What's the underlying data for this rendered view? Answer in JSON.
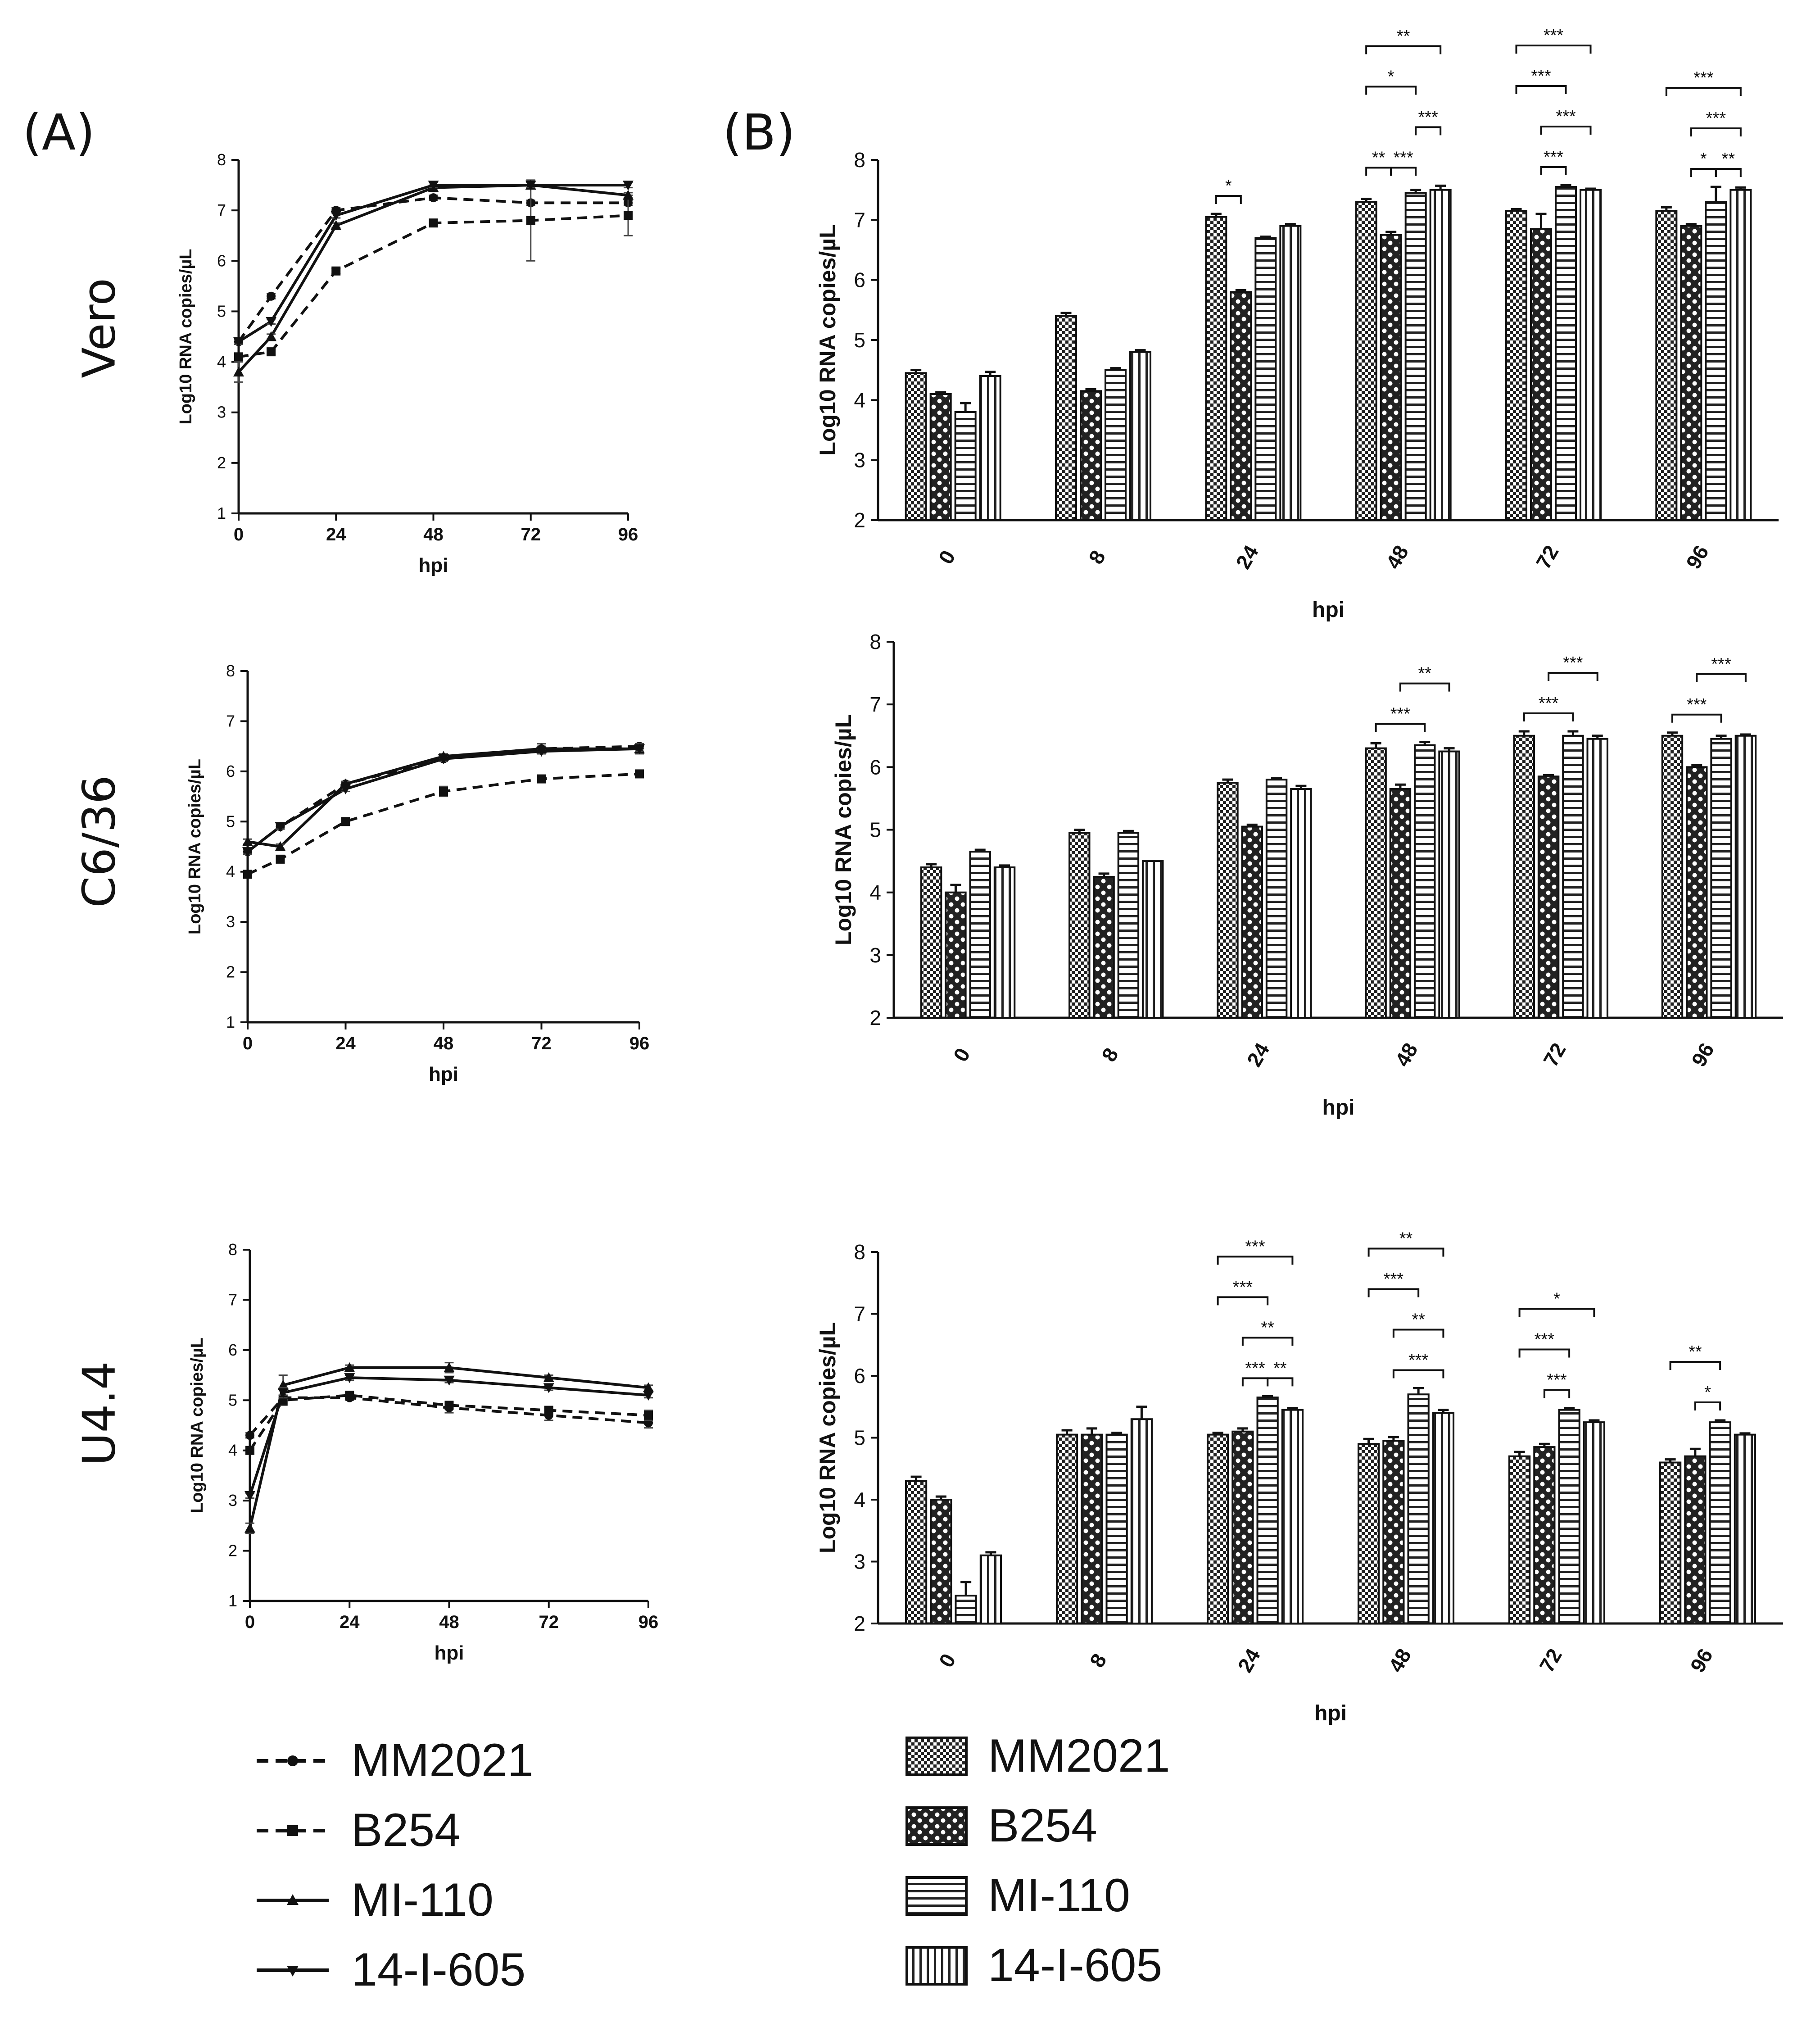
{
  "figure": {
    "panel_a": "(A)",
    "panel_b": "(B)",
    "rows": [
      "Vero",
      "C6/36",
      "U4.4"
    ],
    "legend_lines": [
      "MM2021",
      "B254",
      "MI-110",
      "14-I-605"
    ],
    "legend_bars": [
      "MM2021",
      "B254",
      "MI-110",
      "14-I-605"
    ],
    "colors": {
      "ink": "#111111",
      "axis": "#222222"
    }
  },
  "chart_data": [
    {
      "id": "A-vero",
      "type": "line",
      "title": "",
      "xlabel": "hpi",
      "ylabel": "Log10 RNA copies/µL",
      "x": [
        0,
        8,
        24,
        48,
        72,
        96
      ],
      "xticks": [
        0,
        24,
        48,
        72,
        96
      ],
      "ylim": [
        1,
        8
      ],
      "yticks": [
        1,
        2,
        3,
        4,
        5,
        6,
        7,
        8
      ],
      "series": [
        {
          "name": "MM2021",
          "values": [
            4.4,
            5.3,
            7.0,
            7.25,
            7.15,
            7.15
          ],
          "err": [
            0.05,
            0.05,
            0.05,
            0.05,
            0.05,
            0.05
          ]
        },
        {
          "name": "B254",
          "values": [
            4.1,
            4.2,
            5.8,
            6.75,
            6.8,
            6.9
          ],
          "err": [
            0.05,
            0.05,
            0.05,
            0.05,
            0.8,
            0.4
          ]
        },
        {
          "name": "MI-110",
          "values": [
            3.8,
            4.5,
            6.7,
            7.45,
            7.5,
            7.3
          ],
          "err": [
            0.2,
            0.05,
            0.05,
            0.05,
            0.05,
            0.05
          ]
        },
        {
          "name": "14-I-605",
          "values": [
            4.4,
            4.8,
            6.9,
            7.5,
            7.5,
            7.5
          ],
          "err": [
            0.05,
            0.05,
            0.05,
            0.05,
            0.05,
            0.05
          ]
        }
      ]
    },
    {
      "id": "A-c636",
      "type": "line",
      "title": "",
      "xlabel": "hpi",
      "ylabel": "Log10 RNA copies/µL",
      "x": [
        0,
        8,
        24,
        48,
        72,
        96
      ],
      "xticks": [
        0,
        24,
        48,
        72,
        96
      ],
      "ylim": [
        1,
        8
      ],
      "yticks": [
        1,
        2,
        3,
        4,
        5,
        6,
        7,
        8
      ],
      "series": [
        {
          "name": "MM2021",
          "values": [
            4.4,
            4.9,
            5.75,
            6.25,
            6.45,
            6.5
          ],
          "err": [
            0.05,
            0.05,
            0.05,
            0.05,
            0.05,
            0.05
          ]
        },
        {
          "name": "B254",
          "values": [
            3.95,
            4.25,
            5.0,
            5.6,
            5.85,
            5.95
          ],
          "err": [
            0.05,
            0.05,
            0.05,
            0.1,
            0.05,
            0.05
          ]
        },
        {
          "name": "MI-110",
          "values": [
            4.6,
            4.5,
            5.75,
            6.3,
            6.45,
            6.45
          ],
          "err": [
            0.05,
            0.05,
            0.05,
            0.05,
            0.1,
            0.1
          ]
        },
        {
          "name": "14-I-605",
          "values": [
            4.4,
            4.9,
            5.65,
            6.25,
            6.4,
            6.45
          ],
          "err": [
            0.05,
            0.05,
            0.05,
            0.05,
            0.05,
            0.05
          ]
        }
      ]
    },
    {
      "id": "A-u44",
      "type": "line",
      "title": "",
      "xlabel": "hpi",
      "ylabel": "Log10 RNA copies/µL",
      "x": [
        0,
        8,
        24,
        48,
        72,
        96
      ],
      "xticks": [
        0,
        24,
        48,
        72,
        96
      ],
      "ylim": [
        1,
        8
      ],
      "yticks": [
        1,
        2,
        3,
        4,
        5,
        6,
        7,
        8
      ],
      "series": [
        {
          "name": "MM2021",
          "values": [
            4.3,
            5.05,
            5.05,
            4.85,
            4.7,
            4.55
          ],
          "err": [
            0.05,
            0.05,
            0.05,
            0.1,
            0.1,
            0.1
          ]
        },
        {
          "name": "B254",
          "values": [
            4.0,
            5.0,
            5.1,
            4.9,
            4.8,
            4.7
          ],
          "err": [
            0.05,
            0.1,
            0.05,
            0.05,
            0.05,
            0.1
          ]
        },
        {
          "name": "MI-110",
          "values": [
            2.45,
            5.3,
            5.65,
            5.65,
            5.45,
            5.25
          ],
          "err": [
            0.1,
            0.2,
            0.05,
            0.1,
            0.05,
            0.05
          ]
        },
        {
          "name": "14-I-605",
          "values": [
            3.1,
            5.15,
            5.45,
            5.4,
            5.25,
            5.1
          ],
          "err": [
            0.05,
            0.1,
            0.05,
            0.05,
            0.05,
            0.05
          ]
        }
      ]
    },
    {
      "id": "B-vero",
      "type": "bar",
      "title": "",
      "xlabel": "hpi",
      "ylabel": "Log10 RNA copies/µL",
      "categories": [
        "0",
        "8",
        "24",
        "48",
        "72",
        "96"
      ],
      "ylim": [
        2,
        8
      ],
      "yticks": [
        2,
        3,
        4,
        5,
        6,
        7,
        8
      ],
      "series": [
        {
          "name": "MM2021",
          "values": [
            4.45,
            5.4,
            7.05,
            7.3,
            7.15,
            7.15
          ],
          "err": [
            0.05,
            0.05,
            0.05,
            0.05,
            0.03,
            0.06
          ]
        },
        {
          "name": "B254",
          "values": [
            4.1,
            4.15,
            5.8,
            6.75,
            6.85,
            6.9
          ],
          "err": [
            0.03,
            0.03,
            0.03,
            0.05,
            0.25,
            0.03
          ]
        },
        {
          "name": "MI-110",
          "values": [
            3.8,
            4.5,
            6.7,
            7.45,
            7.55,
            7.3
          ],
          "err": [
            0.15,
            0.03,
            0.02,
            0.05,
            0.03,
            0.25
          ]
        },
        {
          "name": "14-I-605",
          "values": [
            4.4,
            4.8,
            6.9,
            7.5,
            7.5,
            7.5
          ],
          "err": [
            0.07,
            0.03,
            0.03,
            0.07,
            0.02,
            0.04
          ]
        }
      ],
      "significance": [
        {
          "cat": 2,
          "from": 0,
          "to": 1,
          "label": "*",
          "level": 0
        },
        {
          "cat": 3,
          "from": 0,
          "to": 1,
          "label": "**",
          "level": 0
        },
        {
          "cat": 3,
          "from": 1,
          "to": 2,
          "label": "***",
          "level": 0
        },
        {
          "cat": 3,
          "from": 2,
          "to": 3,
          "label": "***",
          "level": 1
        },
        {
          "cat": 3,
          "from": 0,
          "to": 2,
          "label": "*",
          "level": 2
        },
        {
          "cat": 3,
          "from": 0,
          "to": 3,
          "label": "**",
          "level": 3
        },
        {
          "cat": 4,
          "from": 1,
          "to": 2,
          "label": "***",
          "level": 0
        },
        {
          "cat": 4,
          "from": 1,
          "to": 3,
          "label": "***",
          "level": 1
        },
        {
          "cat": 4,
          "from": 0,
          "to": 2,
          "label": "***",
          "level": 2
        },
        {
          "cat": 4,
          "from": 0,
          "to": 3,
          "label": "***",
          "level": 3
        },
        {
          "cat": 5,
          "from": 1,
          "to": 2,
          "label": "*",
          "level": 0
        },
        {
          "cat": 5,
          "from": 2,
          "to": 3,
          "label": "**",
          "level": 0
        },
        {
          "cat": 5,
          "from": 1,
          "to": 3,
          "label": "***",
          "level": 1
        },
        {
          "cat": 5,
          "from": 0,
          "to": 3,
          "label": "***",
          "level": 2
        }
      ]
    },
    {
      "id": "B-c636",
      "type": "bar",
      "title": "",
      "xlabel": "hpi",
      "ylabel": "Log10 RNA copies/µL",
      "categories": [
        "0",
        "8",
        "24",
        "48",
        "72",
        "96"
      ],
      "ylim": [
        2,
        8
      ],
      "yticks": [
        2,
        3,
        4,
        5,
        6,
        7,
        8
      ],
      "series": [
        {
          "name": "MM2021",
          "values": [
            4.4,
            4.95,
            5.75,
            6.3,
            6.5,
            6.5
          ],
          "err": [
            0.05,
            0.05,
            0.05,
            0.08,
            0.07,
            0.05
          ]
        },
        {
          "name": "B254",
          "values": [
            4.0,
            4.25,
            5.05,
            5.65,
            5.85,
            6.0
          ],
          "err": [
            0.12,
            0.05,
            0.03,
            0.07,
            0.02,
            0.03
          ]
        },
        {
          "name": "MI-110",
          "values": [
            4.65,
            4.95,
            5.8,
            6.35,
            6.5,
            6.45
          ],
          "err": [
            0.03,
            0.03,
            0.02,
            0.05,
            0.07,
            0.05
          ]
        },
        {
          "name": "14-I-605",
          "values": [
            4.4,
            4.5,
            5.65,
            6.25,
            6.45,
            6.5
          ],
          "err": [
            0.03,
            0.0,
            0.05,
            0.05,
            0.05,
            0.02
          ]
        }
      ],
      "significance": [
        {
          "cat": 3,
          "from": 0,
          "to": 2,
          "label": "***",
          "level": 0
        },
        {
          "cat": 3,
          "from": 1,
          "to": 3,
          "label": "**",
          "level": 1
        },
        {
          "cat": 4,
          "from": 0,
          "to": 2,
          "label": "***",
          "level": 0
        },
        {
          "cat": 4,
          "from": 1,
          "to": 3,
          "label": "***",
          "level": 1
        },
        {
          "cat": 5,
          "from": 0,
          "to": 2,
          "label": "***",
          "level": 0
        },
        {
          "cat": 5,
          "from": 1,
          "to": 3,
          "label": "***",
          "level": 1
        }
      ]
    },
    {
      "id": "B-u44",
      "type": "bar",
      "title": "",
      "xlabel": "hpi",
      "ylabel": "Log10 RNA copies/µL",
      "categories": [
        "0",
        "8",
        "24",
        "48",
        "72",
        "96"
      ],
      "ylim": [
        2,
        8
      ],
      "yticks": [
        2,
        3,
        4,
        5,
        6,
        7,
        8
      ],
      "series": [
        {
          "name": "MM2021",
          "values": [
            4.3,
            5.05,
            5.05,
            4.9,
            4.7,
            4.6
          ],
          "err": [
            0.07,
            0.07,
            0.03,
            0.08,
            0.07,
            0.05
          ]
        },
        {
          "name": "B254",
          "values": [
            4.0,
            5.05,
            5.1,
            4.95,
            4.85,
            4.7
          ],
          "err": [
            0.05,
            0.1,
            0.05,
            0.06,
            0.05,
            0.12
          ]
        },
        {
          "name": "MI-110",
          "values": [
            2.45,
            5.05,
            5.65,
            5.7,
            5.45,
            5.25
          ],
          "err": [
            0.22,
            0.03,
            0.02,
            0.1,
            0.03,
            0.03
          ]
        },
        {
          "name": "14-I-605",
          "values": [
            3.1,
            5.3,
            5.45,
            5.4,
            5.25,
            5.05
          ],
          "err": [
            0.05,
            0.2,
            0.03,
            0.05,
            0.03,
            0.02
          ]
        }
      ],
      "significance": [
        {
          "cat": 2,
          "from": 1,
          "to": 2,
          "label": "***",
          "level": 0
        },
        {
          "cat": 2,
          "from": 2,
          "to": 3,
          "label": "**",
          "level": 0
        },
        {
          "cat": 2,
          "from": 1,
          "to": 3,
          "label": "**",
          "level": 1
        },
        {
          "cat": 2,
          "from": 0,
          "to": 2,
          "label": "***",
          "level": 2
        },
        {
          "cat": 2,
          "from": 0,
          "to": 3,
          "label": "***",
          "level": 3
        },
        {
          "cat": 3,
          "from": 1,
          "to": 3,
          "label": "***",
          "level": 0
        },
        {
          "cat": 3,
          "from": 1,
          "to": 3,
          "label": "**",
          "level": 1
        },
        {
          "cat": 3,
          "from": 0,
          "to": 2,
          "label": "***",
          "level": 2
        },
        {
          "cat": 3,
          "from": 0,
          "to": 3,
          "label": "**",
          "level": 3
        },
        {
          "cat": 4,
          "from": 1,
          "to": 2,
          "label": "***",
          "level": 0
        },
        {
          "cat": 4,
          "from": 0,
          "to": 2,
          "label": "***",
          "level": 1
        },
        {
          "cat": 4,
          "from": 0,
          "to": 3,
          "label": "*",
          "level": 2
        },
        {
          "cat": 5,
          "from": 1,
          "to": 2,
          "label": "*",
          "level": 0
        },
        {
          "cat": 5,
          "from": 0,
          "to": 2,
          "label": "**",
          "level": 1
        }
      ]
    }
  ]
}
